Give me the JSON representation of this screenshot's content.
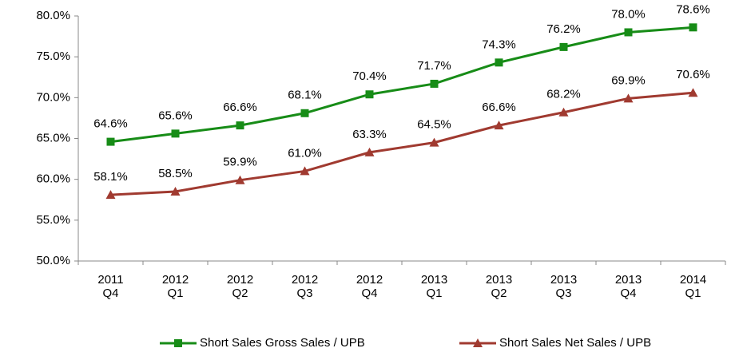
{
  "chart_data": {
    "type": "line",
    "categories": [
      "2011\nQ4",
      "2012\nQ1",
      "2012\nQ2",
      "2012\nQ3",
      "2012\nQ4",
      "2013\nQ1",
      "2013\nQ2",
      "2013\nQ3",
      "2013\nQ4",
      "2014\nQ1"
    ],
    "series": [
      {
        "name": "Short Sales Gross Sales / UPB",
        "color": "#178c17",
        "marker": "square",
        "values": [
          64.6,
          65.6,
          66.6,
          68.1,
          70.4,
          71.7,
          74.3,
          76.2,
          78.0,
          78.6
        ],
        "value_labels": [
          "64.6%",
          "65.6%",
          "66.6%",
          "68.1%",
          "70.4%",
          "71.7%",
          "74.3%",
          "76.2%",
          "78.0%",
          "78.6%"
        ]
      },
      {
        "name": "Short Sales Net Sales / UPB",
        "color": "#a03a30",
        "marker": "triangle",
        "values": [
          58.1,
          58.5,
          59.9,
          61.0,
          63.3,
          64.5,
          66.6,
          68.2,
          69.9,
          70.6
        ],
        "value_labels": [
          "58.1%",
          "58.5%",
          "59.9%",
          "61.0%",
          "63.3%",
          "64.5%",
          "66.6%",
          "68.2%",
          "69.9%",
          "70.6%"
        ]
      }
    ],
    "ylim": [
      50,
      80
    ],
    "yticks": [
      {
        "value": 50,
        "label": "50.0%"
      },
      {
        "value": 55,
        "label": "55.0%"
      },
      {
        "value": 60,
        "label": "60.0%"
      },
      {
        "value": 65,
        "label": "65.0%"
      },
      {
        "value": 70,
        "label": "70.0%"
      },
      {
        "value": 75,
        "label": "75.0%"
      },
      {
        "value": 80,
        "label": "80.0%"
      }
    ],
    "grid": false,
    "legend": "bottom"
  }
}
